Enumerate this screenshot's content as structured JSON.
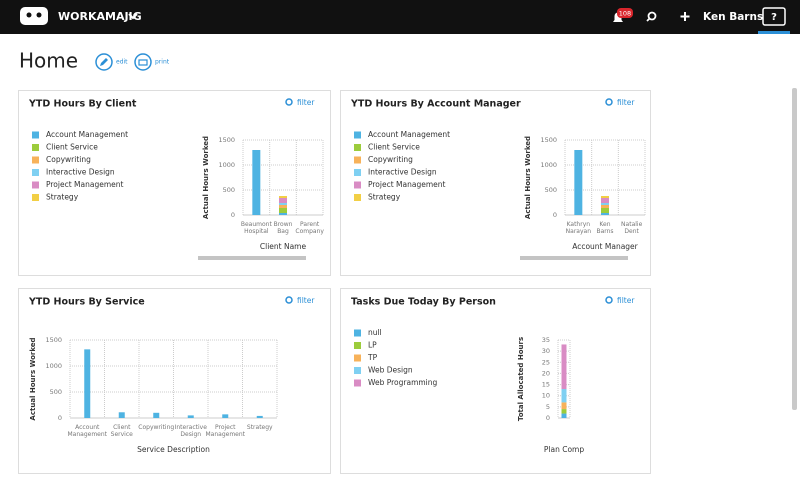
{
  "header": {
    "app_name": "WORKAMAJIG",
    "notification_count": "108",
    "user_name": "Ken Barns",
    "help": "?"
  },
  "page": {
    "title": "Home",
    "edit": "edit",
    "print": "print"
  },
  "widgets": [
    {
      "title": "YTD Hours By Client",
      "filter": "filter",
      "chart": {
        "type": "bar",
        "stacked": true,
        "x_label": "Client Name",
        "y_label": "Actual Hours Worked",
        "categories": [
          "Beaumont Hospital",
          "Brown Bag",
          "Parent Company"
        ],
        "series": [
          {
            "name": "Account Management",
            "color": "#4eb3e2",
            "values": [
              1300,
              40,
              0
            ]
          },
          {
            "name": "Client Service",
            "color": "#9ccc3c",
            "values": [
              0,
              100,
              0
            ]
          },
          {
            "name": "Copywriting",
            "color": "#f7b25a",
            "values": [
              0,
              60,
              0
            ]
          },
          {
            "name": "Interactive Design",
            "color": "#7fd0f2",
            "values": [
              0,
              40,
              0
            ]
          },
          {
            "name": "Project Management",
            "color": "#d98cc4",
            "values": [
              0,
              100,
              0
            ]
          },
          {
            "name": "Strategy",
            "color": "#f2cf45",
            "values": [
              0,
              40,
              0
            ]
          }
        ],
        "ylim": [
          0,
          1500
        ],
        "yticks": [
          0,
          500,
          1000,
          1500
        ]
      }
    },
    {
      "title": "YTD Hours By Account Manager",
      "filter": "filter",
      "chart": {
        "type": "bar",
        "stacked": true,
        "x_label": "Account Manager",
        "y_label": "Actual Hours Worked",
        "categories": [
          "Kathryn Narayan",
          "Ken Barns",
          "Natalie Dent"
        ],
        "series": [
          {
            "name": "Account Management",
            "color": "#4eb3e2",
            "values": [
              1300,
              40,
              0
            ]
          },
          {
            "name": "Client Service",
            "color": "#9ccc3c",
            "values": [
              0,
              100,
              0
            ]
          },
          {
            "name": "Copywriting",
            "color": "#f7b25a",
            "values": [
              0,
              60,
              0
            ]
          },
          {
            "name": "Interactive Design",
            "color": "#7fd0f2",
            "values": [
              0,
              40,
              0
            ]
          },
          {
            "name": "Project Management",
            "color": "#d98cc4",
            "values": [
              0,
              100,
              0
            ]
          },
          {
            "name": "Strategy",
            "color": "#f2cf45",
            "values": [
              0,
              40,
              0
            ]
          }
        ],
        "ylim": [
          0,
          1500
        ],
        "yticks": [
          0,
          500,
          1000,
          1500
        ]
      }
    },
    {
      "title": "YTD Hours By Service",
      "filter": "filter",
      "chart": {
        "type": "bar",
        "stacked": false,
        "x_label": "Service Description",
        "y_label": "Actual Hours Worked",
        "categories": [
          "Account Management",
          "Client Service",
          "Copywriting",
          "Interactive Design",
          "Project Management",
          "Strategy"
        ],
        "values": [
          1320,
          110,
          100,
          50,
          70,
          40
        ],
        "color": "#4eb3e2",
        "ylim": [
          0,
          1500
        ],
        "yticks": [
          0,
          500,
          1000,
          1500
        ]
      }
    },
    {
      "title": "Tasks Due Today By Person",
      "filter": "filter",
      "chart": {
        "type": "bar",
        "stacked": true,
        "x_label": "Plan Comp",
        "y_label": "Total Allocated Hours",
        "categories": [
          null
        ],
        "series": [
          {
            "name": "null",
            "color": "#4eb3e2",
            "values": [
              2
            ]
          },
          {
            "name": "LP",
            "color": "#9ccc3c",
            "values": [
              2
            ]
          },
          {
            "name": "TP",
            "color": "#f7b25a",
            "values": [
              3
            ]
          },
          {
            "name": "Web Design",
            "color": "#7fd0f2",
            "values": [
              6
            ]
          },
          {
            "name": "Web Programming",
            "color": "#d98cc4",
            "values": [
              20
            ]
          }
        ],
        "ylim": [
          0,
          35
        ],
        "yticks": [
          0,
          5,
          10,
          15,
          20,
          25,
          30,
          35
        ]
      }
    }
  ]
}
